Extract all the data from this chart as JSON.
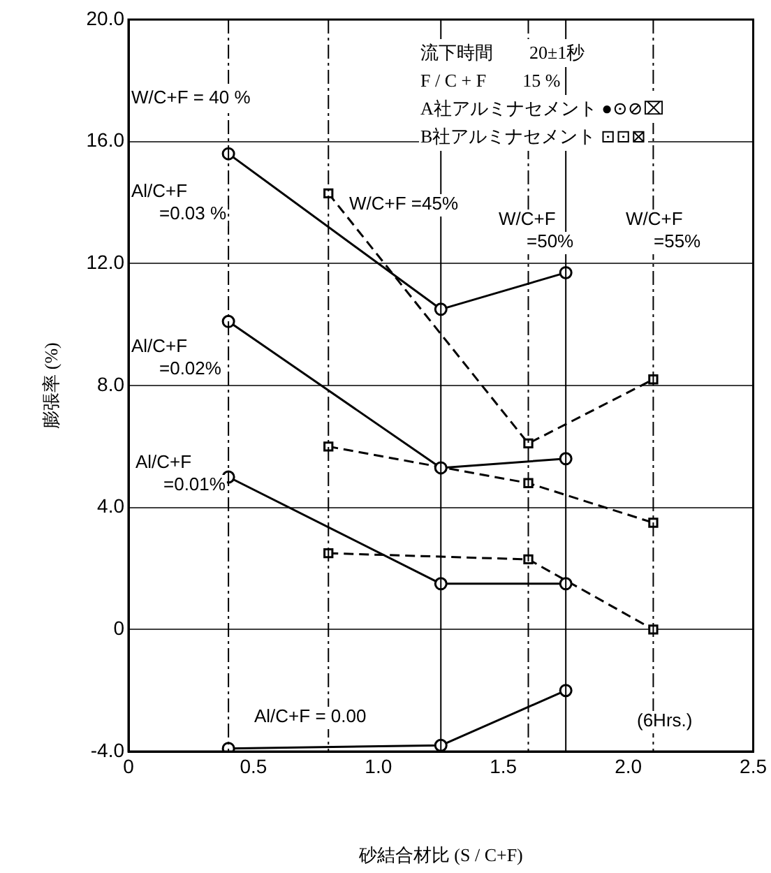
{
  "chart_data": {
    "type": "line",
    "xlabel": "砂結合材比 (S / C+F)",
    "ylabel": "膨張率 (%)",
    "xlim": [
      0,
      2.5
    ],
    "xticks": [
      0,
      0.5,
      {
        "value": 1,
        "label": "1.0"
      },
      1.5,
      {
        "value": 2,
        "label": "2.0"
      },
      2.5
    ],
    "ylim": [
      -4,
      20
    ],
    "yticks": [
      {
        "value": -4,
        "label": "-4.0"
      },
      0,
      {
        "value": 4,
        "label": "4.0"
      },
      {
        "value": 8,
        "label": "8.0"
      },
      {
        "value": 12,
        "label": "12.0"
      },
      {
        "value": 16,
        "label": "16.0"
      },
      {
        "value": 20,
        "label": "20.0"
      }
    ],
    "grid": "y",
    "legend": false,
    "color": "#000000",
    "series": [
      {
        "color": "#000000",
        "marker": "circle",
        "line_style": "solid",
        "x": [
          0.4,
          1.25,
          1.75
        ],
        "values": [
          15.6,
          10.5,
          11.7
        ]
      },
      {
        "color": "#000000",
        "marker": "circle",
        "line_style": "solid",
        "x": [
          0.4,
          1.25,
          1.75
        ],
        "values": [
          10.1,
          5.3,
          5.6
        ]
      },
      {
        "color": "#000000",
        "marker": "circle",
        "line_style": "solid",
        "x": [
          0.4,
          1.25,
          1.75
        ],
        "values": [
          5.0,
          1.5,
          1.5
        ]
      },
      {
        "color": "#000000",
        "marker": "circle",
        "line_style": "solid",
        "x": [
          0.4,
          1.25,
          1.75
        ],
        "values": [
          -3.9,
          -3.8,
          -2.0
        ]
      },
      {
        "color": "#000000",
        "marker": "square",
        "line_style": "dashed",
        "x": [
          0.8,
          1.6,
          2.1
        ],
        "values": [
          14.3,
          6.1,
          8.2
        ]
      },
      {
        "color": "#000000",
        "marker": "square",
        "line_style": "dashed",
        "x": [
          0.8,
          1.6,
          2.1
        ],
        "values": [
          6.0,
          4.8,
          3.5
        ]
      },
      {
        "color": "#000000",
        "marker": "square",
        "line_style": "dashed",
        "x": [
          0.8,
          1.6,
          2.1
        ],
        "values": [
          2.5,
          2.3,
          0.0
        ]
      }
    ],
    "ref_lines": [
      {
        "axis": "x",
        "value": 0.4,
        "line_style": "dashed"
      },
      {
        "axis": "x",
        "value": 0.8,
        "line_style": "dashed"
      },
      {
        "axis": "x",
        "value": 1.25,
        "line_style": "solid"
      },
      {
        "axis": "x",
        "value": 1.6,
        "line_style": "dashed"
      },
      {
        "axis": "x",
        "value": 1.75,
        "line_style": "solid"
      },
      {
        "axis": "x",
        "value": 2.1,
        "line_style": "dashed"
      }
    ],
    "annotations": [
      "流下時間　　20±1秒",
      "F / C + F　　15 %",
      "A社アルミナセメント ●⊙⊘⌧",
      "B社アルミナセメント ⊡⊡⊠",
      "W/C+F = 40 %",
      "Al/C+F\n=0.03 %",
      "W/C+F =45%",
      "W/C+F\n=50%",
      "W/C+F\n=55%",
      "Al/C+F\n=0.02%",
      "Al/C+F\n=0.01%",
      "Al/C+F = 0.00",
      "(6Hrs.)"
    ]
  }
}
